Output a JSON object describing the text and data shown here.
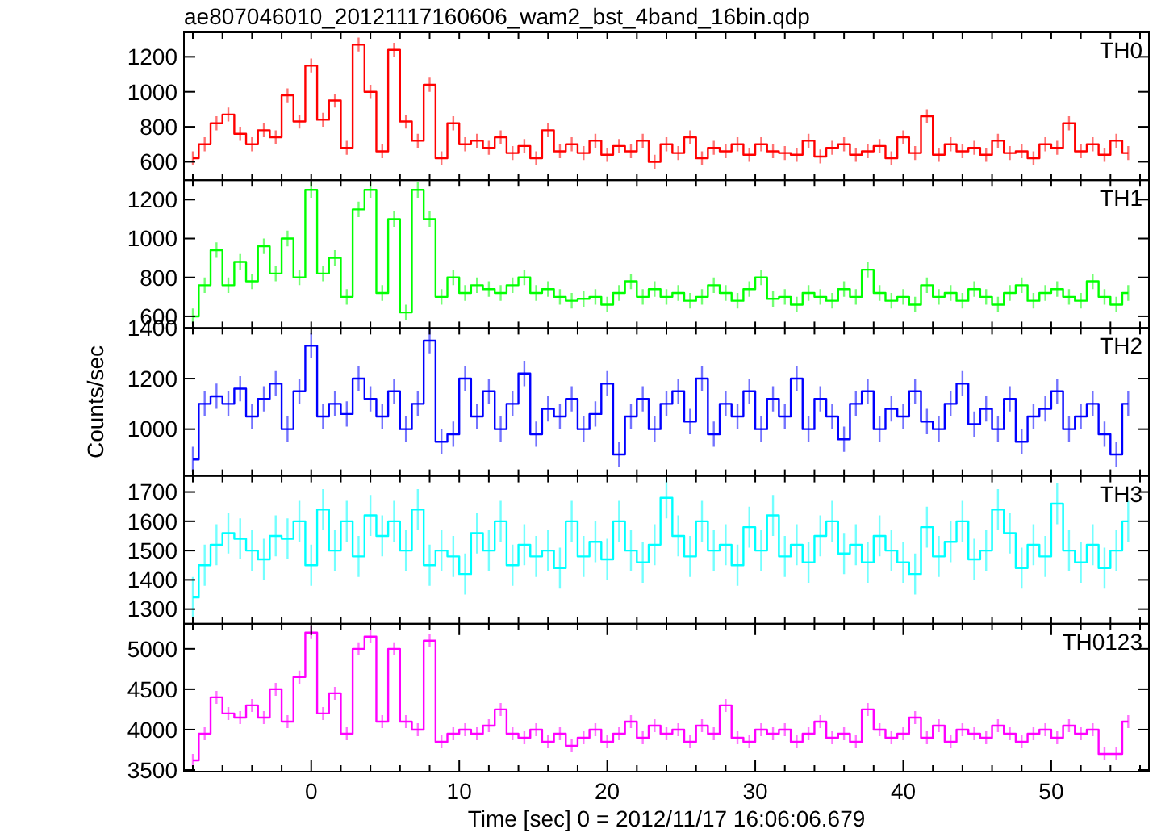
{
  "chart_data": [
    {
      "type": "step",
      "title": "ae807046010_20121117160606_wam2_bst_4band_16bin.qdp",
      "annotations": [
        "TH0"
      ],
      "tick_labels": "y",
      "xlim": [
        -8.6,
        56.6
      ],
      "ylim": [
        495,
        1340
      ],
      "yticks": [
        600,
        800,
        1000,
        1200
      ],
      "xticks": [
        {
          "value": -8,
          "label": null
        },
        {
          "value": -6,
          "label": null
        },
        {
          "value": -4,
          "label": null
        },
        {
          "value": -2,
          "label": null
        },
        {
          "value": 0,
          "label": null
        },
        {
          "value": 2,
          "label": null
        },
        {
          "value": 4,
          "label": null
        },
        {
          "value": 6,
          "label": null
        },
        {
          "value": 8,
          "label": null
        },
        {
          "value": 10,
          "label": null
        },
        {
          "value": 12,
          "label": null
        },
        {
          "value": 14,
          "label": null
        },
        {
          "value": 16,
          "label": null
        },
        {
          "value": 18,
          "label": null
        },
        {
          "value": 20,
          "label": null
        },
        {
          "value": 22,
          "label": null
        },
        {
          "value": 24,
          "label": null
        },
        {
          "value": 26,
          "label": null
        },
        {
          "value": 28,
          "label": null
        },
        {
          "value": 30,
          "label": null
        },
        {
          "value": 32,
          "label": null
        },
        {
          "value": 34,
          "label": null
        },
        {
          "value": 36,
          "label": null
        },
        {
          "value": 38,
          "label": null
        },
        {
          "value": 40,
          "label": null
        },
        {
          "value": 42,
          "label": null
        },
        {
          "value": 44,
          "label": null
        },
        {
          "value": 46,
          "label": null
        },
        {
          "value": 48,
          "label": null
        },
        {
          "value": 50,
          "label": null
        },
        {
          "value": 52,
          "label": null
        },
        {
          "value": 54,
          "label": null
        },
        {
          "value": 56,
          "label": null
        }
      ],
      "x": [
        -8,
        -7.2,
        -6.4,
        -5.6,
        -4.8,
        -4,
        -3.2,
        -2.4,
        -1.6,
        -0.8,
        0,
        0.8,
        1.6,
        2.4,
        3.2,
        4,
        4.8,
        5.6,
        6.4,
        7.2,
        8,
        8.8,
        9.6,
        10.4,
        11.2,
        12,
        12.8,
        13.6,
        14.4,
        15.2,
        16,
        16.8,
        17.6,
        18.4,
        19.2,
        20,
        20.8,
        21.6,
        22.4,
        23.2,
        24,
        24.8,
        25.6,
        26.4,
        27.2,
        28,
        28.8,
        29.6,
        30.4,
        31.2,
        32,
        32.8,
        33.6,
        34.4,
        35.2,
        36,
        36.8,
        37.6,
        38.4,
        39.2,
        40,
        40.8,
        41.6,
        42.4,
        43.2,
        44,
        44.8,
        45.6,
        46.4,
        47.2,
        48,
        48.8,
        49.6,
        50.4,
        51.2,
        52,
        52.8,
        53.6,
        54.4,
        55.2
      ],
      "series": [
        {
          "color": "#ff0000",
          "values": [
            620,
            700,
            820,
            870,
            760,
            700,
            780,
            740,
            980,
            830,
            1150,
            840,
            950,
            680,
            1270,
            1000,
            660,
            1240,
            830,
            720,
            1040,
            620,
            820,
            700,
            720,
            680,
            740,
            650,
            690,
            620,
            780,
            660,
            700,
            650,
            720,
            640,
            690,
            660,
            720,
            600,
            700,
            650,
            740,
            620,
            680,
            660,
            700,
            640,
            700,
            660,
            650,
            640,
            720,
            630,
            680,
            700,
            640,
            660,
            690,
            620,
            740,
            650,
            860,
            640,
            700,
            660,
            680,
            640,
            720,
            650,
            660,
            620,
            700,
            680,
            820,
            660,
            700,
            640,
            720,
            650
          ],
          "errors": [
            40,
            40,
            40,
            40,
            40,
            40,
            40,
            40,
            40,
            40,
            40,
            40,
            40,
            40,
            40,
            40,
            40,
            40,
            40,
            40,
            40,
            40,
            40,
            40,
            40,
            40,
            40,
            40,
            40,
            40,
            40,
            40,
            40,
            40,
            40,
            40,
            40,
            40,
            40,
            40,
            40,
            40,
            40,
            40,
            40,
            40,
            40,
            40,
            40,
            40,
            40,
            40,
            40,
            40,
            40,
            40,
            40,
            40,
            40,
            40,
            40,
            40,
            40,
            40,
            40,
            40,
            40,
            40,
            40,
            40,
            40,
            40,
            40,
            40,
            40,
            40,
            40,
            40,
            40,
            40
          ]
        }
      ]
    },
    {
      "type": "step",
      "annotations": [
        "TH1"
      ],
      "tick_labels": "y",
      "xlim": [
        -8.6,
        56.6
      ],
      "ylim": [
        540,
        1300
      ],
      "yticks": [
        600,
        800,
        1000,
        1200
      ],
      "xticks": [
        {
          "value": -8,
          "label": null
        },
        {
          "value": -6,
          "label": null
        },
        {
          "value": -4,
          "label": null
        },
        {
          "value": -2,
          "label": null
        },
        {
          "value": 0,
          "label": null
        },
        {
          "value": 2,
          "label": null
        },
        {
          "value": 4,
          "label": null
        },
        {
          "value": 6,
          "label": null
        },
        {
          "value": 8,
          "label": null
        },
        {
          "value": 10,
          "label": null
        },
        {
          "value": 12,
          "label": null
        },
        {
          "value": 14,
          "label": null
        },
        {
          "value": 16,
          "label": null
        },
        {
          "value": 18,
          "label": null
        },
        {
          "value": 20,
          "label": null
        },
        {
          "value": 22,
          "label": null
        },
        {
          "value": 24,
          "label": null
        },
        {
          "value": 26,
          "label": null
        },
        {
          "value": 28,
          "label": null
        },
        {
          "value": 30,
          "label": null
        },
        {
          "value": 32,
          "label": null
        },
        {
          "value": 34,
          "label": null
        },
        {
          "value": 36,
          "label": null
        },
        {
          "value": 38,
          "label": null
        },
        {
          "value": 40,
          "label": null
        },
        {
          "value": 42,
          "label": null
        },
        {
          "value": 44,
          "label": null
        },
        {
          "value": 46,
          "label": null
        },
        {
          "value": 48,
          "label": null
        },
        {
          "value": 50,
          "label": null
        },
        {
          "value": 52,
          "label": null
        },
        {
          "value": 54,
          "label": null
        },
        {
          "value": 56,
          "label": null
        }
      ],
      "x": [
        -8,
        -7.2,
        -6.4,
        -5.6,
        -4.8,
        -4,
        -3.2,
        -2.4,
        -1.6,
        -0.8,
        0,
        0.8,
        1.6,
        2.4,
        3.2,
        4,
        4.8,
        5.6,
        6.4,
        7.2,
        8,
        8.8,
        9.6,
        10.4,
        11.2,
        12,
        12.8,
        13.6,
        14.4,
        15.2,
        16,
        16.8,
        17.6,
        18.4,
        19.2,
        20,
        20.8,
        21.6,
        22.4,
        23.2,
        24,
        24.8,
        25.6,
        26.4,
        27.2,
        28,
        28.8,
        29.6,
        30.4,
        31.2,
        32,
        32.8,
        33.6,
        34.4,
        35.2,
        36,
        36.8,
        37.6,
        38.4,
        39.2,
        40,
        40.8,
        41.6,
        42.4,
        43.2,
        44,
        44.8,
        45.6,
        46.4,
        47.2,
        48,
        48.8,
        49.6,
        50.4,
        51.2,
        52,
        52.8,
        53.6,
        54.4,
        55.2
      ],
      "series": [
        {
          "color": "#00ff00",
          "values": [
            600,
            760,
            940,
            760,
            880,
            780,
            960,
            820,
            1000,
            800,
            1250,
            820,
            900,
            700,
            1150,
            1250,
            720,
            1100,
            620,
            1250,
            1100,
            700,
            800,
            720,
            760,
            740,
            720,
            760,
            800,
            720,
            740,
            700,
            680,
            690,
            700,
            660,
            720,
            780,
            700,
            740,
            700,
            720,
            680,
            700,
            760,
            720,
            680,
            740,
            800,
            690,
            700,
            660,
            720,
            700,
            680,
            740,
            700,
            840,
            720,
            680,
            700,
            660,
            760,
            700,
            720,
            680,
            740,
            700,
            660,
            720,
            760,
            680,
            720,
            740,
            700,
            680,
            780,
            700,
            660,
            720
          ],
          "errors": [
            40,
            40,
            40,
            40,
            40,
            40,
            40,
            40,
            40,
            40,
            40,
            40,
            40,
            40,
            40,
            40,
            40,
            40,
            40,
            40,
            40,
            40,
            40,
            40,
            40,
            40,
            40,
            40,
            40,
            40,
            40,
            40,
            40,
            40,
            40,
            40,
            40,
            40,
            40,
            40,
            40,
            40,
            40,
            40,
            40,
            40,
            40,
            40,
            40,
            40,
            40,
            40,
            40,
            40,
            40,
            40,
            40,
            40,
            40,
            40,
            40,
            40,
            40,
            40,
            40,
            40,
            40,
            40,
            40,
            40,
            40,
            40,
            40,
            40,
            40,
            40,
            40,
            40,
            40,
            40
          ]
        }
      ]
    },
    {
      "type": "step",
      "ylabel": "Counts/sec",
      "annotations": [
        "TH2"
      ],
      "tick_labels": "y",
      "xlim": [
        -8.6,
        56.6
      ],
      "ylim": [
        815,
        1400
      ],
      "yticks": [
        1000,
        1200,
        1400
      ],
      "xticks": [
        {
          "value": -8,
          "label": null
        },
        {
          "value": -6,
          "label": null
        },
        {
          "value": -4,
          "label": null
        },
        {
          "value": -2,
          "label": null
        },
        {
          "value": 0,
          "label": null
        },
        {
          "value": 2,
          "label": null
        },
        {
          "value": 4,
          "label": null
        },
        {
          "value": 6,
          "label": null
        },
        {
          "value": 8,
          "label": null
        },
        {
          "value": 10,
          "label": null
        },
        {
          "value": 12,
          "label": null
        },
        {
          "value": 14,
          "label": null
        },
        {
          "value": 16,
          "label": null
        },
        {
          "value": 18,
          "label": null
        },
        {
          "value": 20,
          "label": null
        },
        {
          "value": 22,
          "label": null
        },
        {
          "value": 24,
          "label": null
        },
        {
          "value": 26,
          "label": null
        },
        {
          "value": 28,
          "label": null
        },
        {
          "value": 30,
          "label": null
        },
        {
          "value": 32,
          "label": null
        },
        {
          "value": 34,
          "label": null
        },
        {
          "value": 36,
          "label": null
        },
        {
          "value": 38,
          "label": null
        },
        {
          "value": 40,
          "label": null
        },
        {
          "value": 42,
          "label": null
        },
        {
          "value": 44,
          "label": null
        },
        {
          "value": 46,
          "label": null
        },
        {
          "value": 48,
          "label": null
        },
        {
          "value": 50,
          "label": null
        },
        {
          "value": 52,
          "label": null
        },
        {
          "value": 54,
          "label": null
        },
        {
          "value": 56,
          "label": null
        }
      ],
      "x": [
        -8,
        -7.2,
        -6.4,
        -5.6,
        -4.8,
        -4,
        -3.2,
        -2.4,
        -1.6,
        -0.8,
        0,
        0.8,
        1.6,
        2.4,
        3.2,
        4,
        4.8,
        5.6,
        6.4,
        7.2,
        8,
        8.8,
        9.6,
        10.4,
        11.2,
        12,
        12.8,
        13.6,
        14.4,
        15.2,
        16,
        16.8,
        17.6,
        18.4,
        19.2,
        20,
        20.8,
        21.6,
        22.4,
        23.2,
        24,
        24.8,
        25.6,
        26.4,
        27.2,
        28,
        28.8,
        29.6,
        30.4,
        31.2,
        32,
        32.8,
        33.6,
        34.4,
        35.2,
        36,
        36.8,
        37.6,
        38.4,
        39.2,
        40,
        40.8,
        41.6,
        42.4,
        43.2,
        44,
        44.8,
        45.6,
        46.4,
        47.2,
        48,
        48.8,
        49.6,
        50.4,
        51.2,
        52,
        52.8,
        53.6,
        54.4,
        55.2
      ],
      "series": [
        {
          "color": "#0000ff",
          "values": [
            880,
            1100,
            1130,
            1100,
            1160,
            1050,
            1120,
            1180,
            1000,
            1150,
            1330,
            1050,
            1100,
            1060,
            1200,
            1120,
            1050,
            1150,
            1000,
            1100,
            1350,
            950,
            980,
            1200,
            1050,
            1150,
            1000,
            1100,
            1220,
            980,
            1080,
            1050,
            1120,
            1000,
            1060,
            1180,
            900,
            1050,
            1120,
            1000,
            1100,
            1150,
            1030,
            1200,
            980,
            1100,
            1050,
            1150,
            1000,
            1120,
            1050,
            1200,
            1000,
            1120,
            1050,
            960,
            1100,
            1150,
            1000,
            1080,
            1050,
            1150,
            1030,
            1000,
            1100,
            1180,
            1020,
            1080,
            1000,
            1120,
            950,
            1050,
            1080,
            1150,
            1000,
            1050,
            1100,
            980,
            900,
            1100
          ],
          "errors": [
            50,
            50,
            50,
            50,
            50,
            50,
            50,
            50,
            50,
            50,
            50,
            50,
            50,
            50,
            50,
            50,
            50,
            50,
            50,
            50,
            50,
            50,
            50,
            50,
            50,
            50,
            50,
            50,
            50,
            50,
            50,
            50,
            50,
            50,
            50,
            50,
            50,
            50,
            50,
            50,
            50,
            50,
            50,
            50,
            50,
            50,
            50,
            50,
            50,
            50,
            50,
            50,
            50,
            50,
            50,
            50,
            50,
            50,
            50,
            50,
            50,
            50,
            50,
            50,
            50,
            50,
            50,
            50,
            50,
            50,
            50,
            50,
            50,
            50,
            50,
            50,
            50,
            50,
            50,
            50
          ]
        }
      ]
    },
    {
      "type": "step",
      "annotations": [
        "TH3"
      ],
      "tick_labels": "y",
      "xlim": [
        -8.6,
        56.6
      ],
      "ylim": [
        1250,
        1755
      ],
      "yticks": [
        1300,
        1400,
        1500,
        1600,
        1700
      ],
      "xticks": [
        {
          "value": -8,
          "label": null
        },
        {
          "value": -6,
          "label": null
        },
        {
          "value": -4,
          "label": null
        },
        {
          "value": -2,
          "label": null
        },
        {
          "value": 0,
          "label": null
        },
        {
          "value": 2,
          "label": null
        },
        {
          "value": 4,
          "label": null
        },
        {
          "value": 6,
          "label": null
        },
        {
          "value": 8,
          "label": null
        },
        {
          "value": 10,
          "label": null
        },
        {
          "value": 12,
          "label": null
        },
        {
          "value": 14,
          "label": null
        },
        {
          "value": 16,
          "label": null
        },
        {
          "value": 18,
          "label": null
        },
        {
          "value": 20,
          "label": null
        },
        {
          "value": 22,
          "label": null
        },
        {
          "value": 24,
          "label": null
        },
        {
          "value": 26,
          "label": null
        },
        {
          "value": 28,
          "label": null
        },
        {
          "value": 30,
          "label": null
        },
        {
          "value": 32,
          "label": null
        },
        {
          "value": 34,
          "label": null
        },
        {
          "value": 36,
          "label": null
        },
        {
          "value": 38,
          "label": null
        },
        {
          "value": 40,
          "label": null
        },
        {
          "value": 42,
          "label": null
        },
        {
          "value": 44,
          "label": null
        },
        {
          "value": 46,
          "label": null
        },
        {
          "value": 48,
          "label": null
        },
        {
          "value": 50,
          "label": null
        },
        {
          "value": 52,
          "label": null
        },
        {
          "value": 54,
          "label": null
        },
        {
          "value": 56,
          "label": null
        }
      ],
      "x": [
        -8,
        -7.2,
        -6.4,
        -5.6,
        -4.8,
        -4,
        -3.2,
        -2.4,
        -1.6,
        -0.8,
        0,
        0.8,
        1.6,
        2.4,
        3.2,
        4,
        4.8,
        5.6,
        6.4,
        7.2,
        8,
        8.8,
        9.6,
        10.4,
        11.2,
        12,
        12.8,
        13.6,
        14.4,
        15.2,
        16,
        16.8,
        17.6,
        18.4,
        19.2,
        20,
        20.8,
        21.6,
        22.4,
        23.2,
        24,
        24.8,
        25.6,
        26.4,
        27.2,
        28,
        28.8,
        29.6,
        30.4,
        31.2,
        32,
        32.8,
        33.6,
        34.4,
        35.2,
        36,
        36.8,
        37.6,
        38.4,
        39.2,
        40,
        40.8,
        41.6,
        42.4,
        43.2,
        44,
        44.8,
        45.6,
        46.4,
        47.2,
        48,
        48.8,
        49.6,
        50.4,
        51.2,
        52,
        52.8,
        53.6,
        54.4,
        55.2
      ],
      "series": [
        {
          "color": "#00ffff",
          "values": [
            1340,
            1450,
            1520,
            1560,
            1540,
            1500,
            1470,
            1550,
            1540,
            1600,
            1450,
            1640,
            1500,
            1600,
            1480,
            1620,
            1550,
            1600,
            1500,
            1640,
            1450,
            1500,
            1480,
            1420,
            1560,
            1500,
            1600,
            1450,
            1520,
            1480,
            1500,
            1440,
            1600,
            1480,
            1530,
            1470,
            1600,
            1500,
            1460,
            1520,
            1680,
            1550,
            1480,
            1600,
            1500,
            1520,
            1450,
            1580,
            1500,
            1620,
            1480,
            1520,
            1460,
            1550,
            1600,
            1490,
            1520,
            1460,
            1550,
            1500,
            1460,
            1420,
            1580,
            1480,
            1530,
            1600,
            1470,
            1500,
            1640,
            1560,
            1440,
            1520,
            1480,
            1660,
            1500,
            1460,
            1520,
            1440,
            1500,
            1600
          ],
          "errors": [
            70,
            70,
            70,
            70,
            70,
            70,
            70,
            70,
            70,
            70,
            70,
            70,
            70,
            70,
            70,
            70,
            70,
            70,
            70,
            70,
            70,
            70,
            70,
            70,
            70,
            70,
            70,
            70,
            70,
            70,
            70,
            70,
            70,
            70,
            70,
            70,
            70,
            70,
            70,
            70,
            70,
            70,
            70,
            70,
            70,
            70,
            70,
            70,
            70,
            70,
            70,
            70,
            70,
            70,
            70,
            70,
            70,
            70,
            70,
            70,
            70,
            70,
            70,
            70,
            70,
            70,
            70,
            70,
            70,
            70,
            70,
            70,
            70,
            70,
            70,
            70,
            70,
            70,
            70,
            70
          ]
        }
      ]
    },
    {
      "type": "step",
      "xlabel": "Time [sec] 0 = 2012/11/17 16:06:06.679",
      "annotations": [
        "TH0123"
      ],
      "xlim": [
        -8.6,
        56.6
      ],
      "ylim": [
        3480,
        5310
      ],
      "yticks": [
        3500,
        4000,
        4500,
        5000
      ],
      "xticks": [
        {
          "value": -8,
          "label": null
        },
        {
          "value": -6,
          "label": null
        },
        {
          "value": -4,
          "label": null
        },
        {
          "value": -2,
          "label": null
        },
        {
          "value": 0,
          "label": "0"
        },
        {
          "value": 2,
          "label": null
        },
        {
          "value": 4,
          "label": null
        },
        {
          "value": 6,
          "label": null
        },
        {
          "value": 8,
          "label": null
        },
        {
          "value": 10,
          "label": "10"
        },
        {
          "value": 12,
          "label": null
        },
        {
          "value": 14,
          "label": null
        },
        {
          "value": 16,
          "label": null
        },
        {
          "value": 18,
          "label": null
        },
        {
          "value": 20,
          "label": "20"
        },
        {
          "value": 22,
          "label": null
        },
        {
          "value": 24,
          "label": null
        },
        {
          "value": 26,
          "label": null
        },
        {
          "value": 28,
          "label": null
        },
        {
          "value": 30,
          "label": "30"
        },
        {
          "value": 32,
          "label": null
        },
        {
          "value": 34,
          "label": null
        },
        {
          "value": 36,
          "label": null
        },
        {
          "value": 38,
          "label": null
        },
        {
          "value": 40,
          "label": "40"
        },
        {
          "value": 42,
          "label": null
        },
        {
          "value": 44,
          "label": null
        },
        {
          "value": 46,
          "label": null
        },
        {
          "value": 48,
          "label": null
        },
        {
          "value": 50,
          "label": "50"
        },
        {
          "value": 52,
          "label": null
        },
        {
          "value": 54,
          "label": null
        },
        {
          "value": 56,
          "label": null
        }
      ],
      "x": [
        -8,
        -7.2,
        -6.4,
        -5.6,
        -4.8,
        -4,
        -3.2,
        -2.4,
        -1.6,
        -0.8,
        0,
        0.8,
        1.6,
        2.4,
        3.2,
        4,
        4.8,
        5.6,
        6.4,
        7.2,
        8,
        8.8,
        9.6,
        10.4,
        11.2,
        12,
        12.8,
        13.6,
        14.4,
        15.2,
        16,
        16.8,
        17.6,
        18.4,
        19.2,
        20,
        20.8,
        21.6,
        22.4,
        23.2,
        24,
        24.8,
        25.6,
        26.4,
        27.2,
        28,
        28.8,
        29.6,
        30.4,
        31.2,
        32,
        32.8,
        33.6,
        34.4,
        35.2,
        36,
        36.8,
        37.6,
        38.4,
        39.2,
        40,
        40.8,
        41.6,
        42.4,
        43.2,
        44,
        44.8,
        45.6,
        46.4,
        47.2,
        48,
        48.8,
        49.6,
        50.4,
        51.2,
        52,
        52.8,
        53.6,
        54.4,
        55.2
      ],
      "series": [
        {
          "color": "#ff00ff",
          "values": [
            3620,
            3950,
            4400,
            4200,
            4150,
            4300,
            4150,
            4500,
            4100,
            4650,
            5200,
            4200,
            4450,
            3950,
            5000,
            5150,
            4100,
            5000,
            4100,
            4000,
            5100,
            3850,
            3950,
            4000,
            3950,
            4050,
            4250,
            3950,
            3900,
            4000,
            3850,
            3950,
            3800,
            3900,
            4000,
            3850,
            3950,
            4100,
            3900,
            4050,
            3950,
            4000,
            3850,
            4050,
            3950,
            4300,
            3900,
            3850,
            4000,
            3950,
            4000,
            3850,
            3950,
            4100,
            3900,
            3950,
            3850,
            4250,
            4000,
            3900,
            3950,
            4150,
            3900,
            4050,
            3850,
            4000,
            3950,
            3900,
            4050,
            3950,
            3850,
            3950,
            4000,
            3900,
            4050,
            3950,
            4000,
            3700,
            3700,
            4100
          ],
          "errors": [
            80,
            80,
            80,
            80,
            80,
            80,
            80,
            80,
            80,
            80,
            80,
            80,
            80,
            80,
            80,
            80,
            80,
            80,
            80,
            80,
            80,
            80,
            80,
            80,
            80,
            80,
            80,
            80,
            80,
            80,
            80,
            80,
            80,
            80,
            80,
            80,
            80,
            80,
            80,
            80,
            80,
            80,
            80,
            80,
            80,
            80,
            80,
            80,
            80,
            80,
            80,
            80,
            80,
            80,
            80,
            80,
            80,
            80,
            80,
            80,
            80,
            80,
            80,
            80,
            80,
            80,
            80,
            80,
            80,
            80,
            80,
            80,
            80,
            80,
            80,
            80,
            80,
            80,
            80,
            80
          ]
        }
      ]
    }
  ]
}
